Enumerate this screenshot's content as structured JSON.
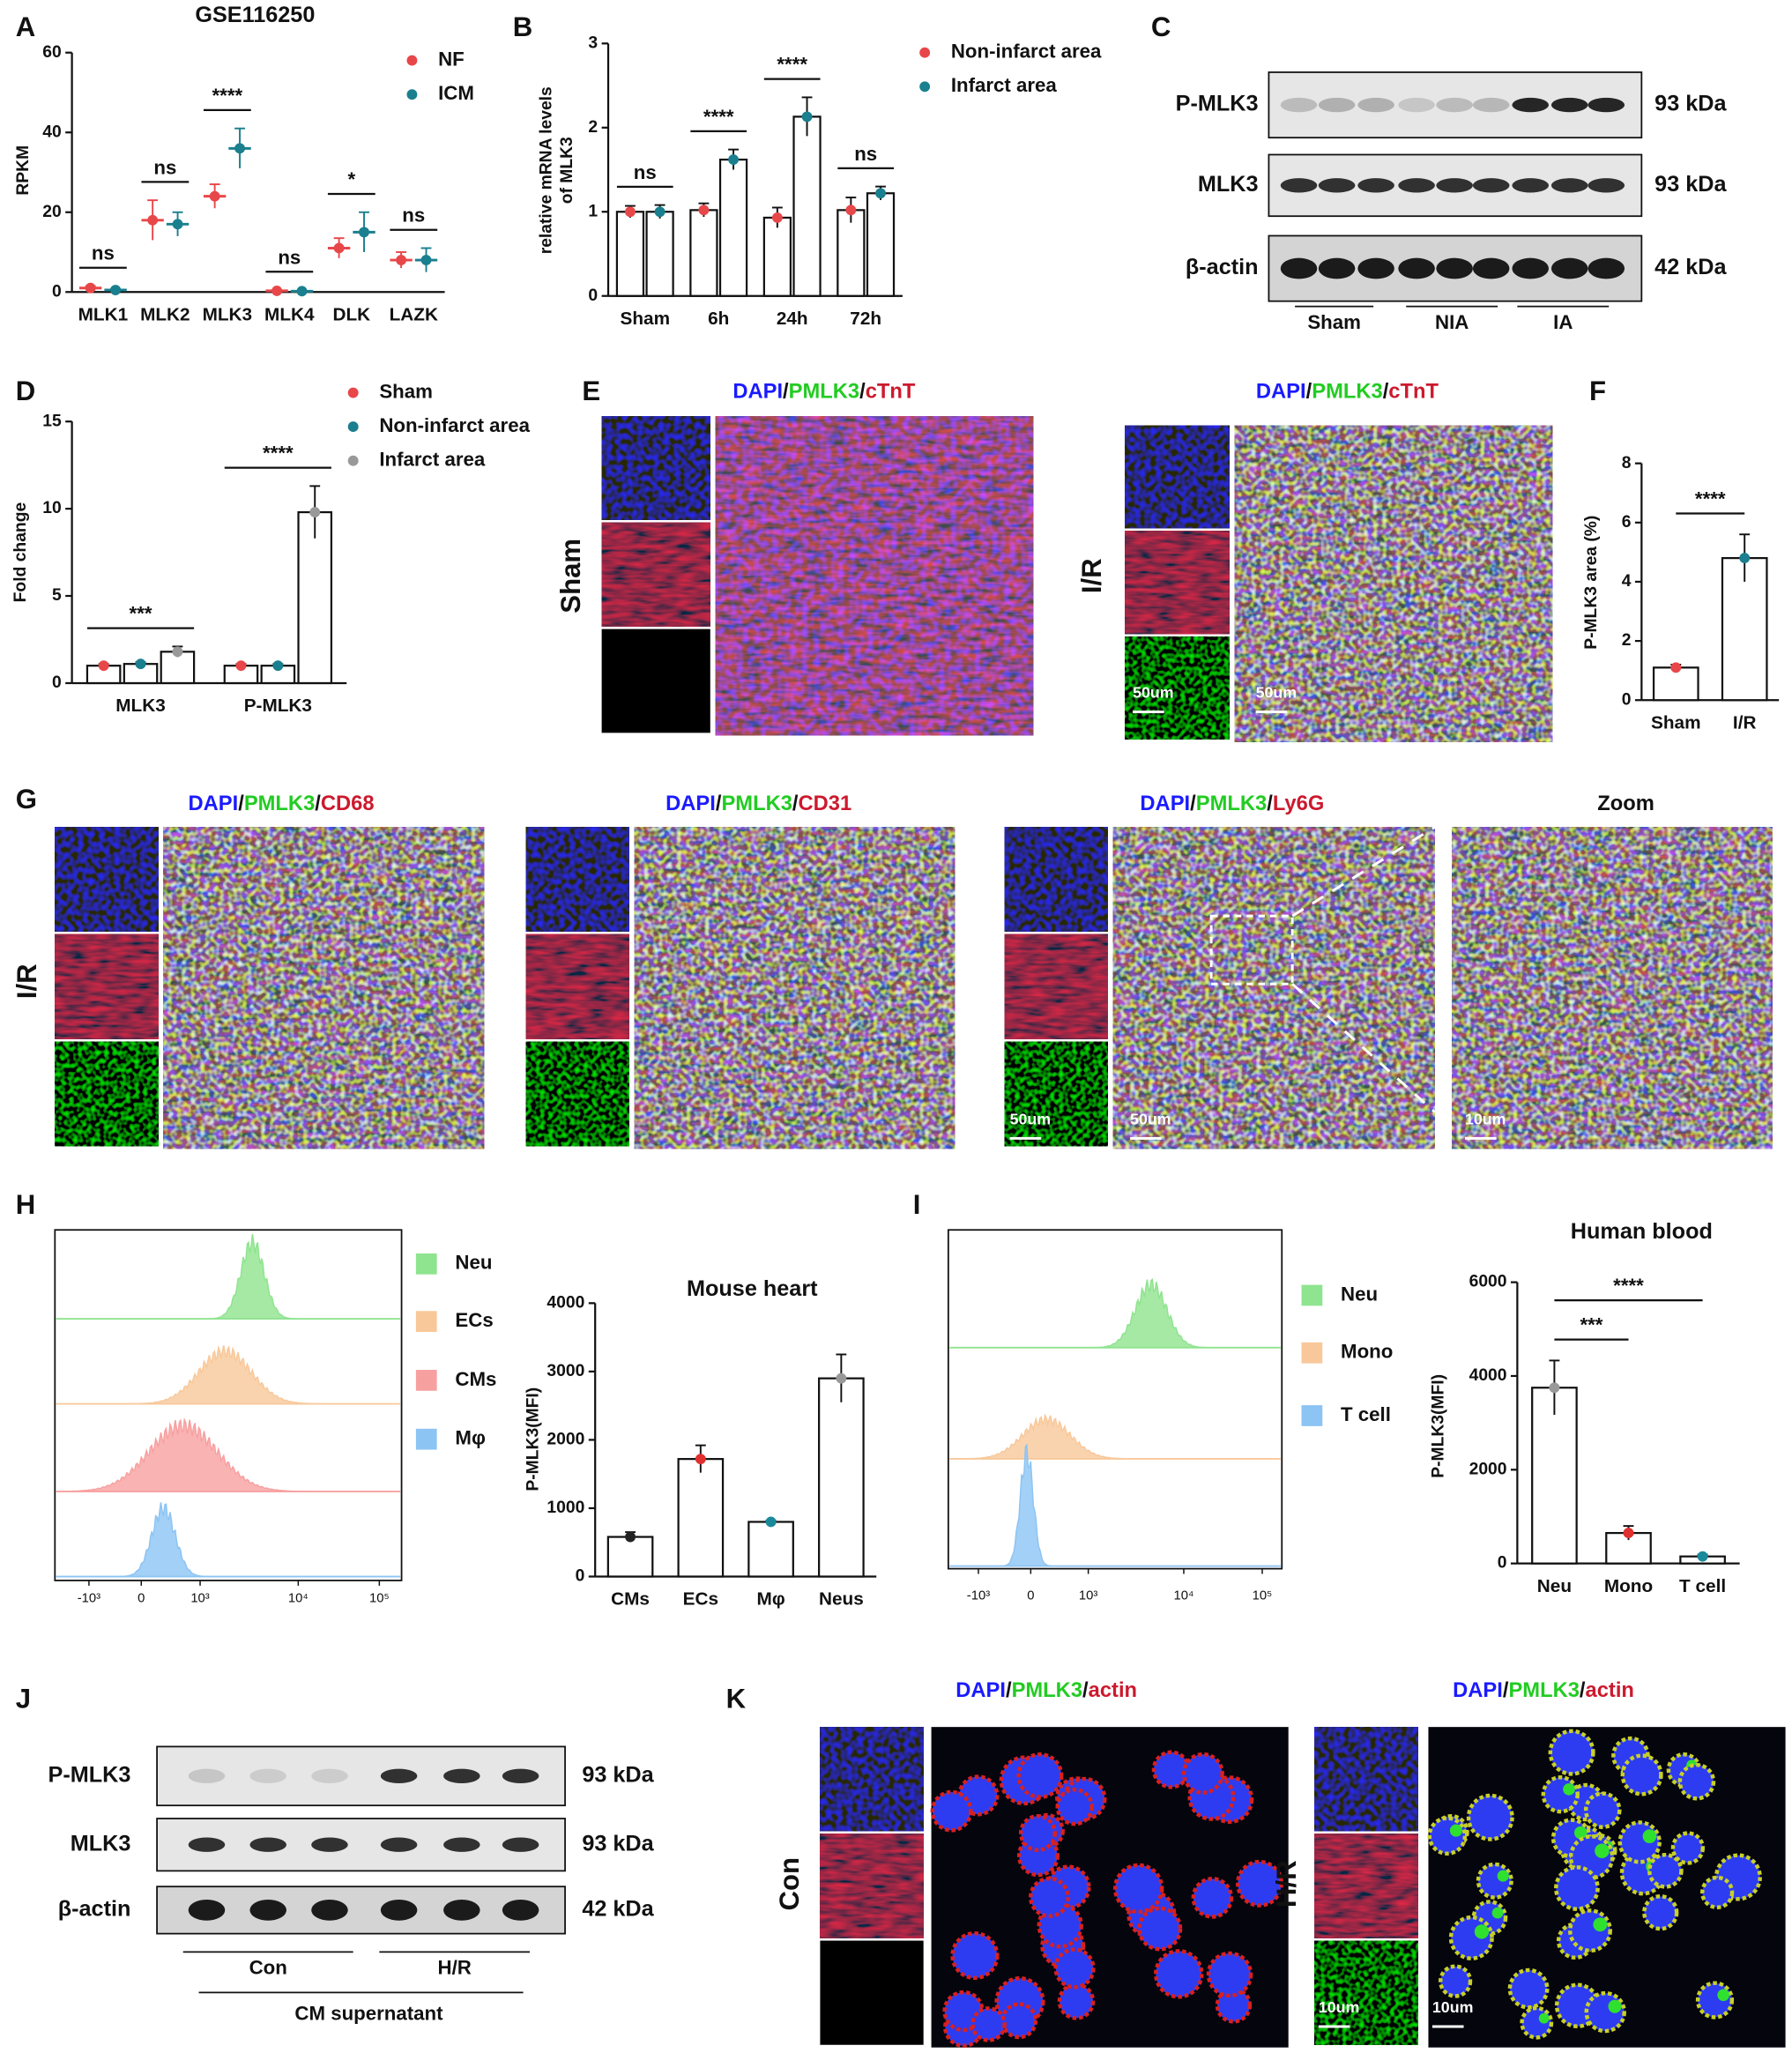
{
  "panel_labels": [
    "A",
    "B",
    "C",
    "D",
    "E",
    "F",
    "G",
    "H",
    "I",
    "J",
    "K"
  ],
  "chart_data": [
    {
      "type": "dot",
      "title": "GSE116250",
      "ylabel": "RPKM",
      "categories": [
        "MLK1",
        "MLK2",
        "MLK3",
        "MLK4",
        "DLK",
        "LAZK"
      ],
      "series": [
        {
          "name": "NF",
          "color": "#e8474a",
          "values": [
            1,
            18,
            24,
            0.3,
            11,
            8
          ],
          "errors": [
            0.5,
            5,
            3,
            0.2,
            2.5,
            2
          ]
        },
        {
          "name": "ICM",
          "color": "#1a7f8e",
          "values": [
            0.5,
            17,
            36,
            0.2,
            15,
            8
          ],
          "errors": [
            0.3,
            3,
            5,
            0.1,
            5,
            3
          ]
        }
      ],
      "ylim": [
        0,
        60
      ],
      "yticks": [
        0,
        20,
        40,
        60
      ],
      "annotations": [
        "ns",
        "ns",
        "****",
        "ns",
        "*",
        "ns"
      ]
    },
    {
      "type": "bar",
      "ylabel": [
        "relative mRNA levels",
        "of MLK3"
      ],
      "categories": [
        "Sham",
        "6h",
        "24h",
        "72h"
      ],
      "series": [
        {
          "name": "Non-infarct area",
          "color": "#e8474a",
          "values": [
            1.0,
            1.02,
            0.93,
            1.02
          ],
          "errors": [
            0.07,
            0.08,
            0.12,
            0.15
          ]
        },
        {
          "name": "Infarct area",
          "color": "#1a7f8e",
          "values": [
            1.0,
            1.62,
            2.13,
            1.22
          ],
          "errors": [
            0.08,
            0.12,
            0.23,
            0.08
          ]
        }
      ],
      "ylim": [
        0,
        3
      ],
      "yticks": [
        0,
        1,
        2,
        3
      ],
      "annotations": [
        "ns",
        "****",
        "****",
        "ns"
      ]
    },
    {
      "type": "bar",
      "ylabel": "Fold change",
      "categories": [
        "MLK3",
        "P-MLK3"
      ],
      "series": [
        {
          "name": "Sham",
          "color": "#e8474a",
          "values": [
            1.0,
            1.0
          ],
          "errors": [
            0.1,
            0.1
          ]
        },
        {
          "name": "Non-infarct area",
          "color": "#1a7f8e",
          "values": [
            1.1,
            1.0
          ],
          "errors": [
            0.1,
            0.1
          ]
        },
        {
          "name": "Infarct area",
          "color": "#999999",
          "values": [
            1.8,
            9.8
          ],
          "errors": [
            0.3,
            1.5
          ]
        }
      ],
      "ylim": [
        0,
        15
      ],
      "yticks": [
        0,
        5,
        10,
        15
      ],
      "annotations": [
        "***",
        "****"
      ]
    },
    {
      "type": "bar",
      "ylabel": "P-MLK3 area (%)",
      "categories": [
        "Sham",
        "I/R"
      ],
      "values": [
        1.1,
        4.8
      ],
      "errors": [
        0.1,
        0.8
      ],
      "colors": [
        "#e8474a",
        "#1a7f8e"
      ],
      "ylim": [
        0,
        8
      ],
      "yticks": [
        0,
        2,
        4,
        6,
        8
      ],
      "annotations": [
        "****"
      ]
    },
    {
      "type": "bar",
      "title": "Mouse heart",
      "ylabel": "P-MLK3(MFI)",
      "categories": [
        "CMs",
        "ECs",
        "Mφ",
        "Neus"
      ],
      "values": [
        580,
        1720,
        800,
        2900
      ],
      "errors": [
        70,
        200,
        20,
        350
      ],
      "colors": [
        "#222222",
        "#e03030",
        "#1a8a9a",
        "#999999"
      ],
      "ylim": [
        0,
        4000
      ],
      "yticks": [
        0,
        1000,
        2000,
        3000,
        4000
      ]
    },
    {
      "type": "bar",
      "title": "Human blood",
      "ylabel": "P-MLK3(MFI)",
      "categories": [
        "Neu",
        "Mono",
        "T cell"
      ],
      "values": [
        3750,
        650,
        150
      ],
      "errors": [
        580,
        150,
        40
      ],
      "colors": [
        "#999999",
        "#e03030",
        "#1a8a9a"
      ],
      "ylim": [
        0,
        6000
      ],
      "yticks": [
        0,
        2000,
        4000,
        6000
      ],
      "annotations": [
        "***",
        "****"
      ]
    }
  ],
  "separator": "/",
  "blot_C": {
    "proteins": [
      "P-MLK3",
      "MLK3",
      "β-actin"
    ],
    "sizes": [
      "93 kDa",
      "93 kDa",
      "42 kDa"
    ],
    "groups": [
      "Sham",
      "NIA",
      "IA"
    ]
  },
  "blot_J": {
    "proteins": [
      "P-MLK3",
      "MLK3",
      "β-actin"
    ],
    "sizes": [
      "93 kDa",
      "93 kDa",
      "42 kDa"
    ],
    "groups": [
      "Con",
      "H/R"
    ],
    "footer": "CM supernatant"
  },
  "panel_E": {
    "stain": [
      "DAPI",
      "PMLK3",
      "cTnT"
    ],
    "conditions": [
      "Sham",
      "I/R"
    ],
    "scale_bar": "50um"
  },
  "panel_G": {
    "condition": "I/R",
    "stains": [
      [
        "DAPI",
        "PMLK3",
        "CD68"
      ],
      [
        "DAPI",
        "PMLK3",
        "CD31"
      ],
      [
        "DAPI",
        "PMLK3",
        "Ly6G"
      ]
    ],
    "zoom": "Zoom",
    "scale_bars": [
      "50um",
      "10um"
    ]
  },
  "panel_K": {
    "stain": [
      "DAPI",
      "PMLK3",
      "actin"
    ],
    "conditions": [
      "Con",
      "H/R"
    ],
    "scale_bar": "10um"
  },
  "flow_H": {
    "populations": [
      {
        "name": "Neu",
        "color": "#8fe48f"
      },
      {
        "name": "ECs",
        "color": "#f8c89a"
      },
      {
        "name": "CMs",
        "color": "#f7a0a0"
      },
      {
        "name": "Mφ",
        "color": "#8cc4f4"
      }
    ],
    "axis_ticks": [
      "-10³",
      "0",
      "10³",
      "10⁴",
      "10⁵"
    ]
  },
  "flow_I": {
    "populations": [
      {
        "name": "Neu",
        "color": "#8fe48f"
      },
      {
        "name": "Mono",
        "color": "#f8c89a"
      },
      {
        "name": "T cell",
        "color": "#8cc4f4"
      }
    ],
    "axis_ticks": [
      "-10³",
      "0",
      "10³",
      "10⁴",
      "10⁵"
    ]
  }
}
